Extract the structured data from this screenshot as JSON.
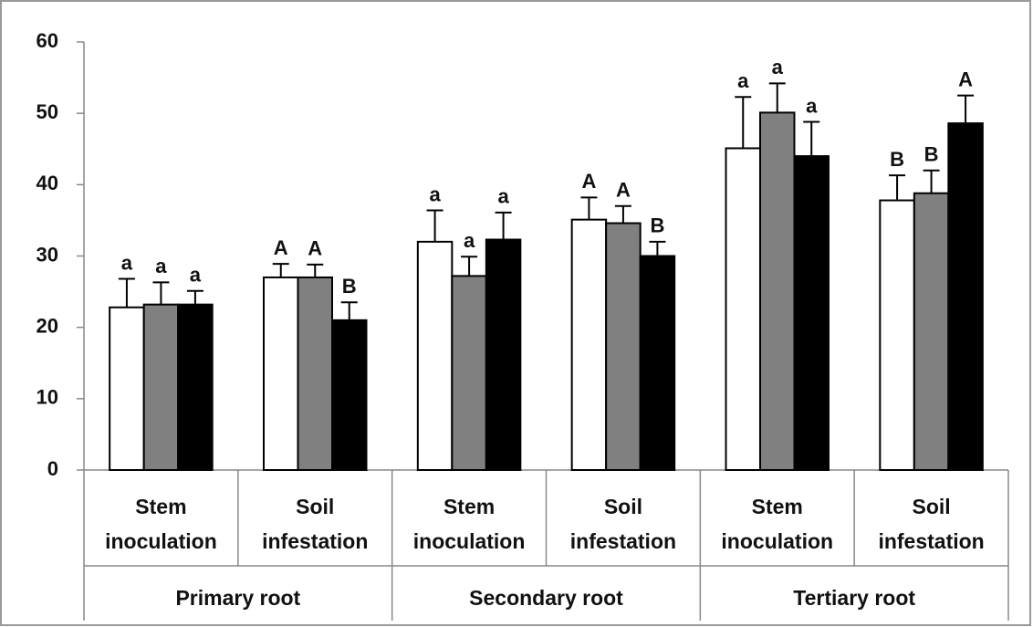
{
  "chart_data": {
    "type": "bar",
    "categories": [
      "Stem inoculation",
      "Soil infestation",
      "Stem inoculation",
      "Soil infestation",
      "Stem inoculation",
      "Soil infestation"
    ],
    "groups": [
      "Primary root",
      "Secondary root",
      "Tertiary root"
    ],
    "series": [
      {
        "color": "#ffffff",
        "values": [
          22.8,
          27.0,
          32.0,
          35.1,
          45.1,
          37.8
        ],
        "errors": [
          4.0,
          1.9,
          4.4,
          3.1,
          7.2,
          3.5
        ],
        "labels": [
          "a",
          "A",
          "a",
          "A",
          "a",
          "B"
        ]
      },
      {
        "color": "#808080",
        "values": [
          23.2,
          27.0,
          27.2,
          34.6,
          50.1,
          38.8
        ],
        "errors": [
          3.1,
          1.8,
          2.7,
          2.4,
          4.1,
          3.2
        ],
        "labels": [
          "a",
          "A",
          "a",
          "A",
          "a",
          "B"
        ]
      },
      {
        "color": "#000000",
        "values": [
          23.2,
          21.0,
          32.3,
          30.0,
          44.0,
          48.6
        ],
        "errors": [
          1.9,
          2.5,
          3.8,
          2.0,
          4.8,
          3.9
        ],
        "labels": [
          "a",
          "B",
          "a",
          "B",
          "a",
          "A"
        ]
      }
    ],
    "ylim": [
      0,
      60
    ],
    "yticks": [
      0,
      10,
      20,
      30,
      40,
      50,
      60
    ]
  }
}
